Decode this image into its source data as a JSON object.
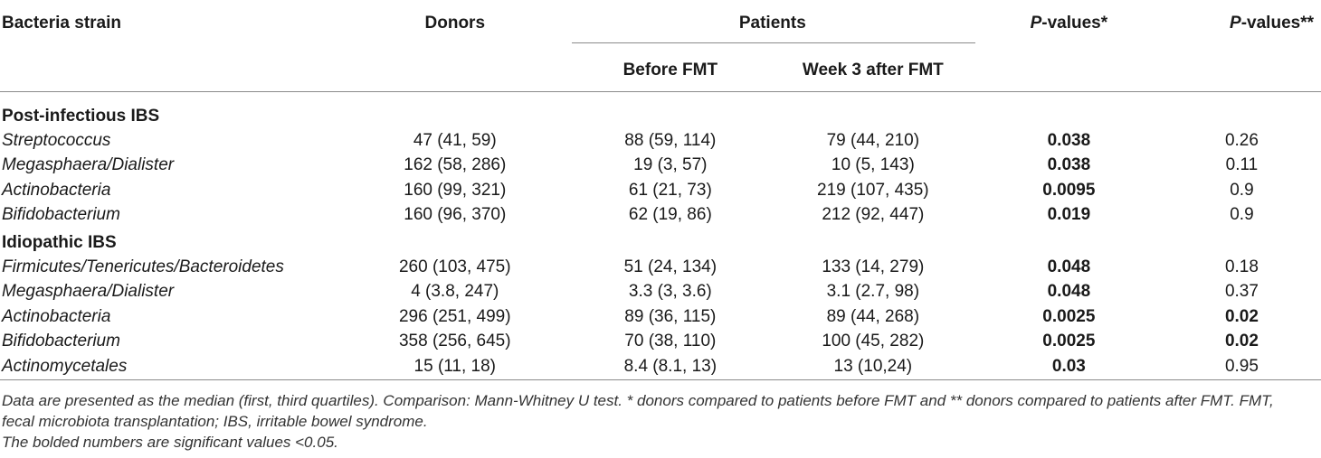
{
  "headers": {
    "strain": "Bacteria strain",
    "donors": "Donors",
    "patients": "Patients",
    "p1": "P-values*",
    "p2": "P-values**",
    "before": "Before FMT",
    "week3": "Week 3 after FMT"
  },
  "sections": [
    {
      "title": "Post-infectious IBS",
      "rows": [
        {
          "strain": "Streptococcus",
          "donors": "47 (41, 59)",
          "before": "88 (59, 114)",
          "week3": "79 (44, 210)",
          "p1": "0.038",
          "p1_bold": true,
          "p2": "0.26",
          "p2_bold": false
        },
        {
          "strain": "Megasphaera/Dialister",
          "donors": "162 (58, 286)",
          "before": "19 (3, 57)",
          "week3": "10 (5, 143)",
          "p1": "0.038",
          "p1_bold": true,
          "p2": "0.11",
          "p2_bold": false
        },
        {
          "strain": "Actinobacteria",
          "donors": "160 (99, 321)",
          "before": "61 (21, 73)",
          "week3": "219 (107, 435)",
          "p1": "0.0095",
          "p1_bold": true,
          "p2": "0.9",
          "p2_bold": false
        },
        {
          "strain": "Bifidobacterium",
          "donors": "160 (96, 370)",
          "before": "62 (19, 86)",
          "week3": "212 (92, 447)",
          "p1": "0.019",
          "p1_bold": true,
          "p2": "0.9",
          "p2_bold": false
        }
      ]
    },
    {
      "title": "Idiopathic IBS",
      "rows": [
        {
          "strain": "Firmicutes/Tenericutes/Bacteroidetes",
          "donors": "260 (103, 475)",
          "before": "51 (24, 134)",
          "week3": "133 (14, 279)",
          "p1": "0.048",
          "p1_bold": true,
          "p2": "0.18",
          "p2_bold": false
        },
        {
          "strain": "Megasphaera/Dialister",
          "donors": "4 (3.8, 247)",
          "before": "3.3 (3, 3.6)",
          "week3": "3.1 (2.7, 98)",
          "p1": "0.048",
          "p1_bold": true,
          "p2": "0.37",
          "p2_bold": false
        },
        {
          "strain": "Actinobacteria",
          "donors": "296 (251, 499)",
          "before": "89 (36, 115)",
          "week3": "89 (44, 268)",
          "p1": "0.0025",
          "p1_bold": true,
          "p2": "0.02",
          "p2_bold": true
        },
        {
          "strain": "Bifidobacterium",
          "donors": "358 (256, 645)",
          "before": "70 (38, 110)",
          "week3": "100 (45, 282)",
          "p1": "0.0025",
          "p1_bold": true,
          "p2": "0.02",
          "p2_bold": true
        },
        {
          "strain": "Actinomycetales",
          "donors": "15 (11, 18)",
          "before": "8.4 (8.1, 13)",
          "week3": "13 (10,24)",
          "p1": "0.03",
          "p1_bold": true,
          "p2": "0.95",
          "p2_bold": false
        }
      ]
    }
  ],
  "footnotes": {
    "note1": "Data are presented as the median (first, third quartiles). Comparison: Mann-Whitney U test. * donors compared to patients before FMT and ** donors compared to patients after FMT. FMT, fecal microbiota transplantation; IBS, irritable bowel syndrome.",
    "note2": "The bolded numbers are significant values <0.05."
  }
}
